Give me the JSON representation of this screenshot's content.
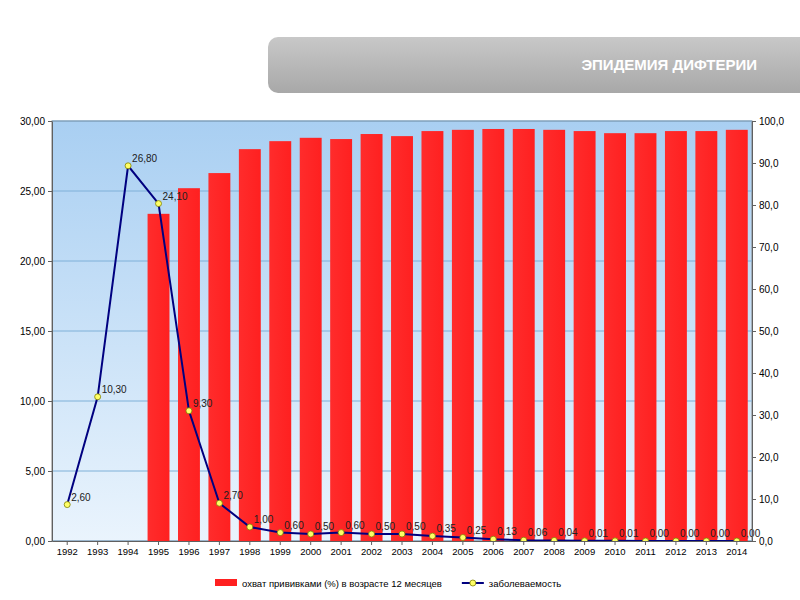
{
  "chart_data": {
    "type": "bar",
    "title": "ЭПИДЕМИЯ ДИФТЕРИИ",
    "categories": [
      "1992",
      "1993",
      "1994",
      "1995",
      "1996",
      "1997",
      "1998",
      "1999",
      "2000",
      "2001",
      "2002",
      "2003",
      "2004",
      "2005",
      "2006",
      "2007",
      "2008",
      "2009",
      "2010",
      "2011",
      "2012",
      "2013",
      "2014"
    ],
    "series": [
      {
        "name": "охват прививками (%) в возрасте 12 месяцев",
        "type": "bar",
        "axis": "y2",
        "color": "#ff2020",
        "values": [
          null,
          null,
          null,
          77.9,
          84.0,
          87.6,
          93.3,
          95.2,
          96.0,
          95.7,
          96.9,
          96.4,
          97.6,
          97.9,
          98.1,
          98.1,
          97.9,
          97.6,
          97.1,
          97.1,
          97.6,
          97.6,
          97.9
        ]
      },
      {
        "name": "заболеваемость",
        "type": "line",
        "color": "#000080",
        "marker": "circle",
        "line_style": "solid",
        "data_labels": true,
        "values": [
          2.6,
          10.3,
          26.8,
          24.1,
          9.3,
          2.7,
          1.0,
          0.6,
          0.5,
          0.6,
          0.5,
          0.5,
          0.35,
          0.25,
          0.13,
          0.06,
          0.04,
          0.01,
          0.01,
          0.0,
          0.0,
          0.0,
          0.0
        ],
        "value_labels": [
          "2,60",
          "10,30",
          "26,80",
          "24,10",
          "9,30",
          "2,70",
          "1,00",
          "0,60",
          "0,50",
          "0,60",
          "0,50",
          "0,50",
          "0,35",
          "0,25",
          "0,13",
          "0,06",
          "0,04",
          "0,01",
          "0,01",
          "0,00",
          "0,00",
          "0,00",
          "0,00"
        ]
      }
    ],
    "ylim": [
      0,
      30
    ],
    "yticks": [
      {
        "value": 0,
        "label": "0,00"
      },
      {
        "value": 5,
        "label": "5,00"
      },
      {
        "value": 10,
        "label": "10,00"
      },
      {
        "value": 15,
        "label": "15,00"
      },
      {
        "value": 20,
        "label": "20,00"
      },
      {
        "value": 25,
        "label": "25,00"
      },
      {
        "value": 30,
        "label": "30,00"
      }
    ],
    "y2lim": [
      0,
      100
    ],
    "y2ticks": [
      {
        "value": 0,
        "label": "0,0"
      },
      {
        "value": 10,
        "label": "10,0"
      },
      {
        "value": 20,
        "label": "20,0"
      },
      {
        "value": 30,
        "label": "30,0"
      },
      {
        "value": 40,
        "label": "40,0"
      },
      {
        "value": 50,
        "label": "50,0"
      },
      {
        "value": 60,
        "label": "60,0"
      },
      {
        "value": 70,
        "label": "70,0"
      },
      {
        "value": 80,
        "label": "80,0"
      },
      {
        "value": 90,
        "label": "90,0"
      },
      {
        "value": 100,
        "label": "100,0"
      }
    ],
    "grid": true,
    "legend": "bottom"
  }
}
